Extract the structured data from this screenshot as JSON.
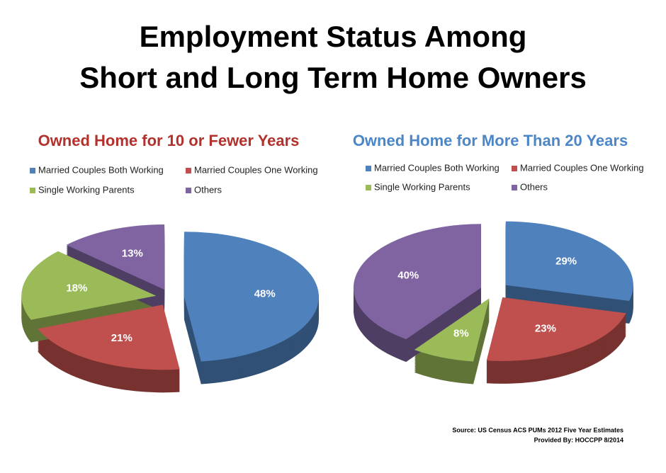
{
  "title": [
    "Employment Status Among",
    "Short and Long Term Home Owners"
  ],
  "source": [
    "Source: US Census ACS PUMs 2012 Five Year Estimates",
    "Provided By: HOCCPP 8/2014"
  ],
  "chart_data": [
    {
      "type": "pie",
      "title": "Owned Home for 10 or Fewer Years",
      "title_color": "#b3312c",
      "categories": [
        "Married Couples Both Working",
        "Married Couples One Working",
        "Single Working Parents",
        "Others"
      ],
      "values": [
        48,
        21,
        18,
        13
      ],
      "value_labels": [
        "48%",
        "21%",
        "18%",
        "13%"
      ],
      "colors": [
        "#4f81bd",
        "#c0504d",
        "#9bbb59",
        "#8064a2"
      ]
    },
    {
      "type": "pie",
      "title": "Owned Home for More Than 20 Years",
      "title_color": "#4a86c8",
      "categories": [
        "Married Couples Both Working",
        "Married Couples One Working",
        "Single Working Parents",
        "Others"
      ],
      "values": [
        29,
        23,
        8,
        40
      ],
      "value_labels": [
        "29%",
        "23%",
        "8%",
        "40%"
      ],
      "colors": [
        "#4f81bd",
        "#c0504d",
        "#9bbb59",
        "#8064a2"
      ]
    }
  ]
}
